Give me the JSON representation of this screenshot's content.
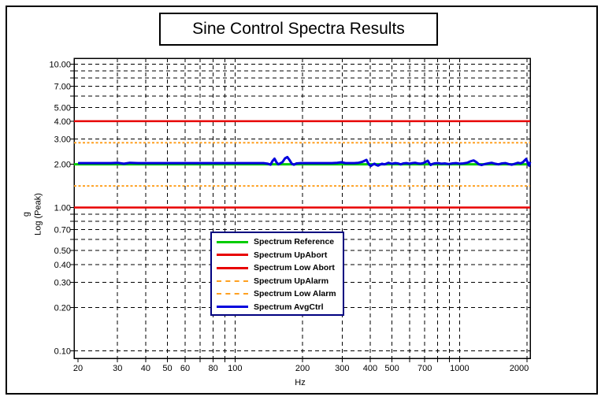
{
  "figure": {
    "title": "Sine Control Spectra Results"
  },
  "axes": {
    "x_label": "Hz",
    "y_label_line1": "g",
    "y_label_line2": "Log (Peak)"
  },
  "chart_data": {
    "type": "line",
    "title": "Sine Control Spectra Results",
    "xlabel": "Hz",
    "ylabel": "g Log (Peak)",
    "x_scale": "log",
    "y_scale": "log",
    "x_range": [
      19.2,
      2063
    ],
    "y_range": [
      0.0885,
      11.0
    ],
    "grid": "dashed-black",
    "legend_position": "inside-bottom-left",
    "x_ticks": {
      "values": [
        20,
        30,
        40,
        50,
        60,
        80,
        100,
        200,
        300,
        400,
        500,
        700,
        1000,
        2000
      ],
      "labels": [
        "20",
        "30",
        "40",
        "50",
        "60",
        "80",
        "100",
        "200",
        "300",
        "400",
        "500",
        "700",
        "1000",
        "2000"
      ]
    },
    "x_gridlines": [
      30,
      40,
      50,
      60,
      70,
      80,
      90,
      100,
      200,
      300,
      400,
      500,
      600,
      700,
      800,
      900,
      1000,
      2000
    ],
    "y_ticks": {
      "values": [
        10,
        7,
        5,
        4,
        3,
        2,
        1,
        0.7,
        0.5,
        0.4,
        0.3,
        0.2,
        0.1
      ],
      "labels": [
        "10.00",
        "7.00",
        "5.00",
        "4.00",
        "3.00",
        "2.00",
        "1.00",
        "0.70",
        "0.50",
        "0.40",
        "0.30",
        "0.20",
        "0.10"
      ]
    },
    "y_gridlines": [
      10,
      9,
      8,
      7,
      6,
      5,
      4,
      3,
      2,
      1,
      0.9,
      0.8,
      0.7,
      0.6,
      0.5,
      0.4,
      0.3,
      0.2,
      0.1
    ],
    "series": [
      {
        "name": "Spectrum Reference",
        "color": "#00CC00",
        "dash": "solid",
        "kind": "hline",
        "value": 2.0,
        "width": 3
      },
      {
        "name": "Spectrum UpAbort",
        "color": "#E80000",
        "dash": "solid",
        "kind": "hline",
        "value": 4.0,
        "width": 2.5
      },
      {
        "name": "Spectrum Low Abort",
        "color": "#E80000",
        "dash": "solid",
        "kind": "hline",
        "value": 1.0,
        "width": 2.5
      },
      {
        "name": "Spectrum UpAlarm",
        "color": "#FFA020",
        "dash": "dashed",
        "kind": "hline",
        "value": 2.83,
        "width": 2
      },
      {
        "name": "Spectrum Low Alarm",
        "color": "#FFA020",
        "dash": "dashed",
        "kind": "hline",
        "value": 1.414,
        "width": 2
      },
      {
        "name": "Spectrum AvgCtrl",
        "color": "#0000DD",
        "dash": "solid",
        "kind": "profile",
        "width": 3,
        "points": [
          [
            20,
            2.04
          ],
          [
            24,
            2.04
          ],
          [
            28,
            2.04
          ],
          [
            30,
            2.05
          ],
          [
            32,
            2.02
          ],
          [
            34,
            2.05
          ],
          [
            37,
            2.04
          ],
          [
            42,
            2.04
          ],
          [
            48,
            2.04
          ],
          [
            55,
            2.04
          ],
          [
            62,
            2.04
          ],
          [
            70,
            2.04
          ],
          [
            78,
            2.04
          ],
          [
            86,
            2.04
          ],
          [
            95,
            2.04
          ],
          [
            105,
            2.04
          ],
          [
            115,
            2.04
          ],
          [
            125,
            2.04
          ],
          [
            134,
            2.04
          ],
          [
            140,
            2.02
          ],
          [
            144,
            1.99
          ],
          [
            147,
            2.11
          ],
          [
            150,
            2.19
          ],
          [
            153,
            2.07
          ],
          [
            156,
            2.0
          ],
          [
            159,
            2.03
          ],
          [
            163,
            2.08
          ],
          [
            167,
            2.2
          ],
          [
            171,
            2.25
          ],
          [
            175,
            2.14
          ],
          [
            179,
            2.02
          ],
          [
            183,
            1.99
          ],
          [
            188,
            2.03
          ],
          [
            196,
            2.04
          ],
          [
            210,
            2.04
          ],
          [
            225,
            2.04
          ],
          [
            240,
            2.04
          ],
          [
            255,
            2.04
          ],
          [
            270,
            2.04
          ],
          [
            285,
            2.05
          ],
          [
            298,
            2.07
          ],
          [
            310,
            2.04
          ],
          [
            325,
            2.04
          ],
          [
            340,
            2.04
          ],
          [
            355,
            2.05
          ],
          [
            368,
            2.08
          ],
          [
            378,
            2.12
          ],
          [
            385,
            2.15
          ],
          [
            391,
            2.05
          ],
          [
            397,
            1.98
          ],
          [
            403,
            1.95
          ],
          [
            410,
            1.99
          ],
          [
            418,
            2.02
          ],
          [
            426,
            1.98
          ],
          [
            434,
            1.96
          ],
          [
            442,
            1.99
          ],
          [
            452,
            2.02
          ],
          [
            462,
            2.0
          ],
          [
            472,
            2.02
          ],
          [
            482,
            2.05
          ],
          [
            492,
            2.03
          ],
          [
            502,
            2.02
          ],
          [
            517,
            2.04
          ],
          [
            532,
            2.03
          ],
          [
            547,
            2.0
          ],
          [
            562,
            2.03
          ],
          [
            580,
            2.04
          ],
          [
            598,
            2.02
          ],
          [
            616,
            2.04
          ],
          [
            634,
            2.05
          ],
          [
            652,
            2.03
          ],
          [
            670,
            2.02
          ],
          [
            690,
            2.04
          ],
          [
            710,
            2.09
          ],
          [
            722,
            2.12
          ],
          [
            734,
            2.03
          ],
          [
            744,
            1.98
          ],
          [
            756,
            2.01
          ],
          [
            772,
            2.03
          ],
          [
            800,
            2.04
          ],
          [
            830,
            2.02
          ],
          [
            860,
            2.03
          ],
          [
            895,
            2.01
          ],
          [
            930,
            2.03
          ],
          [
            965,
            2.04
          ],
          [
            1000,
            2.02
          ],
          [
            1040,
            2.03
          ],
          [
            1080,
            2.05
          ],
          [
            1120,
            2.1
          ],
          [
            1155,
            2.13
          ],
          [
            1190,
            2.07
          ],
          [
            1220,
            2.0
          ],
          [
            1255,
            1.98
          ],
          [
            1295,
            2.01
          ],
          [
            1340,
            2.03
          ],
          [
            1390,
            2.05
          ],
          [
            1440,
            2.02
          ],
          [
            1490,
            2.0
          ],
          [
            1545,
            2.03
          ],
          [
            1600,
            2.04
          ],
          [
            1655,
            2.01
          ],
          [
            1710,
            1.99
          ],
          [
            1765,
            2.02
          ],
          [
            1820,
            2.05
          ],
          [
            1870,
            2.03
          ],
          [
            1915,
            2.07
          ],
          [
            1950,
            2.13
          ],
          [
            1980,
            2.18
          ],
          [
            2005,
            2.08
          ],
          [
            2025,
            1.99
          ],
          [
            2042,
            1.96
          ],
          [
            2056,
            2.05
          ],
          [
            2063,
            2.08
          ]
        ]
      }
    ]
  }
}
